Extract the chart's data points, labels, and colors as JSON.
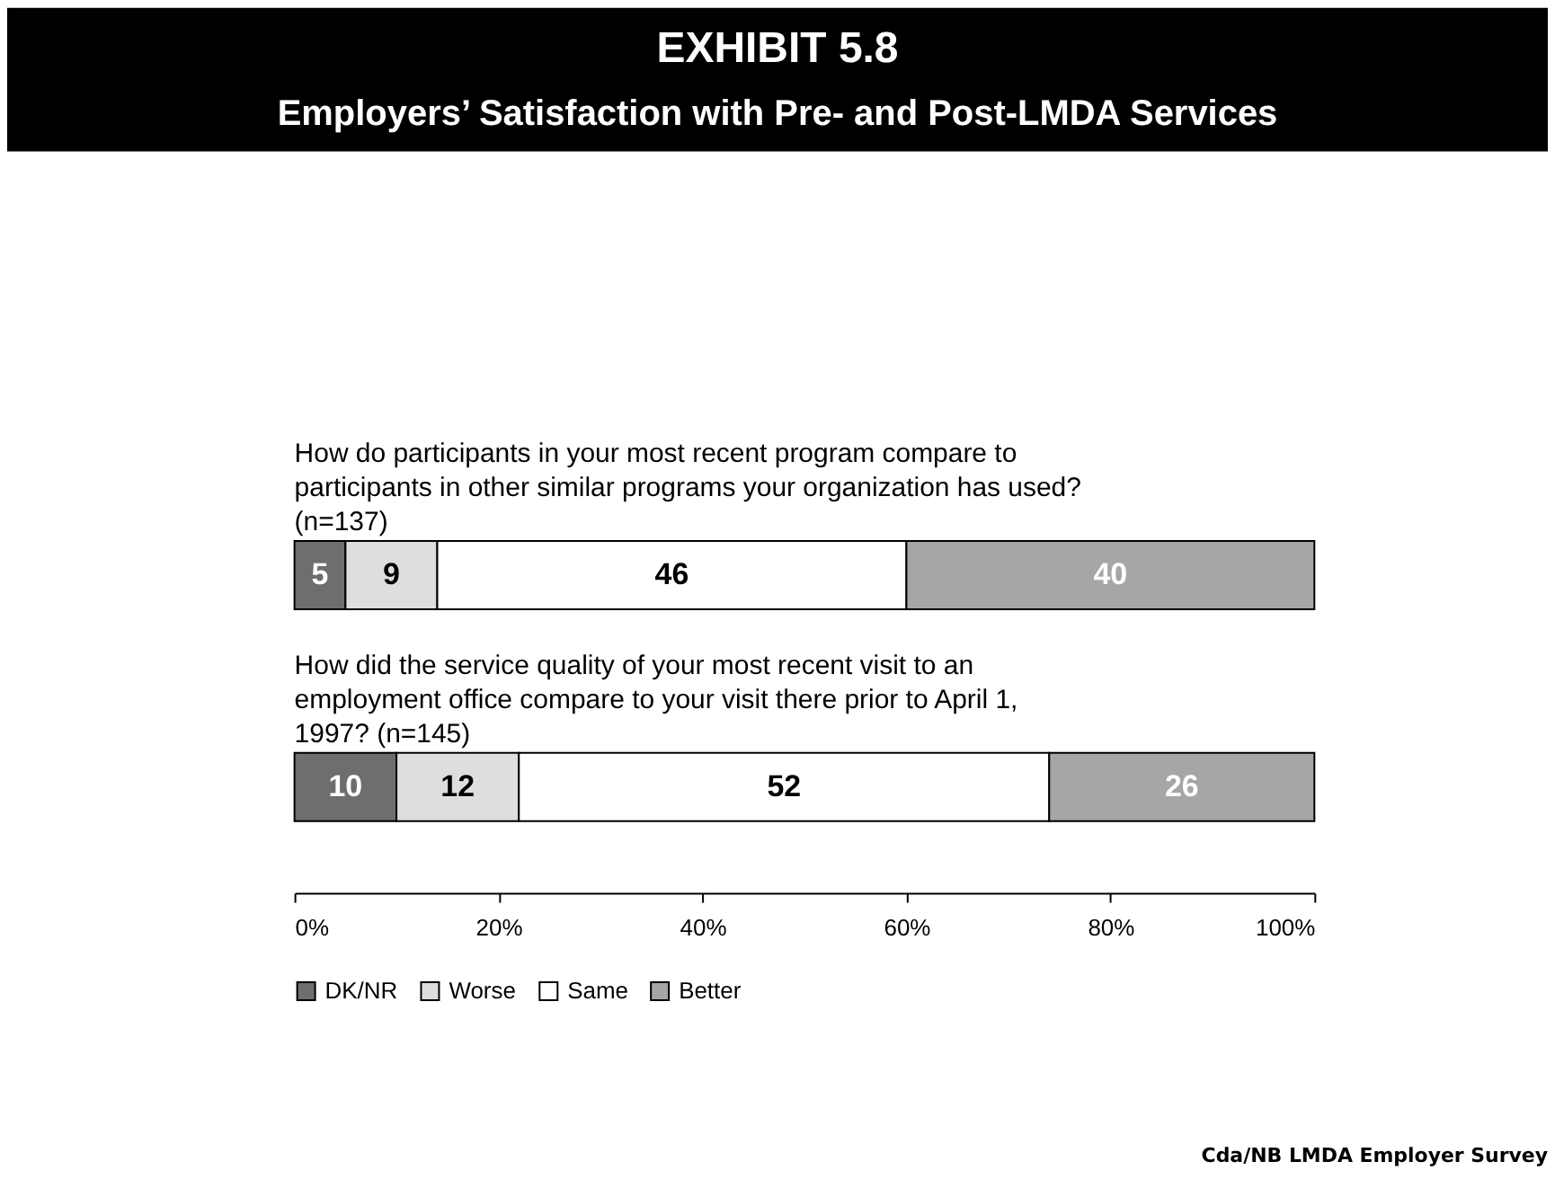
{
  "chart_data": {
    "type": "bar",
    "orientation": "horizontal",
    "stacked": true,
    "data_labels": true,
    "title": "EXHIBIT 5.8",
    "subtitle": "Employers’ Satisfaction with Pre- and Post-LMDA Services",
    "categories": [
      "How do participants in your most recent program compare to participants in other similar programs your organization has used? (n=137)",
      "How did the service quality of your most recent visit to an employment office compare to your visit there prior to April 1, 1997? (n=145)"
    ],
    "series": [
      {
        "name": "DK/NR",
        "color": "#6e6e6e",
        "values": [
          5,
          10
        ]
      },
      {
        "name": "Worse",
        "color": "#dedede",
        "values": [
          9,
          12
        ]
      },
      {
        "name": "Same",
        "color": "#ffffff",
        "values": [
          46,
          52
        ]
      },
      {
        "name": "Better",
        "color": "#a6a6a6",
        "values": [
          40,
          26
        ]
      }
    ],
    "xlim": [
      0,
      100
    ],
    "xticks": [
      {
        "value": 0,
        "label": "0%"
      },
      {
        "value": 20,
        "label": "20%"
      },
      {
        "value": 40,
        "label": "40%"
      },
      {
        "value": 60,
        "label": "60%"
      },
      {
        "value": 80,
        "label": "80%"
      },
      {
        "value": 100,
        "label": "100%"
      }
    ],
    "grid": false,
    "legend": "bottom",
    "annotations": [
      "Cda/NB LMDA Employer Survey"
    ]
  }
}
